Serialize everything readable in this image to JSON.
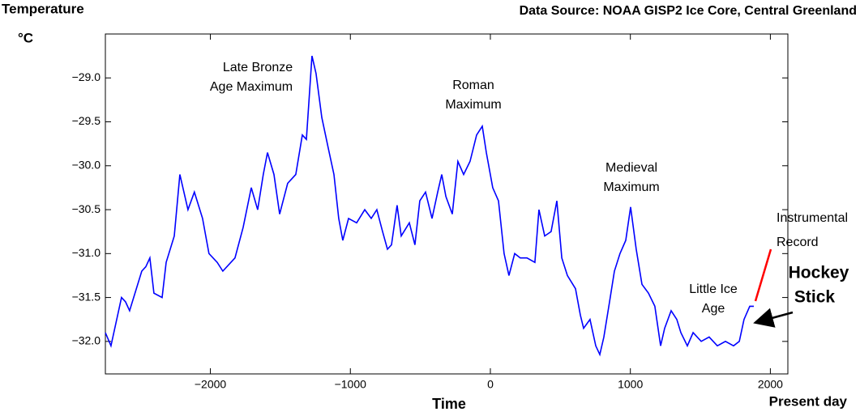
{
  "chart_data": {
    "type": "line",
    "title": "Data Source: NOAA GISP2 Ice Core, Central Greenland",
    "y_label": [
      "Temperature",
      "°C"
    ],
    "x_label": "Time",
    "x_end_label": "Present day",
    "annotations": [
      {
        "lines": [
          "Late Bronze",
          "Age Maximum"
        ]
      },
      {
        "lines": [
          "Roman",
          "Maximum"
        ]
      },
      {
        "lines": [
          "Medieval",
          "Maximum"
        ]
      },
      {
        "lines": [
          "Little Ice",
          "Age"
        ]
      },
      {
        "lines": [
          "Instrumental",
          "Record"
        ],
        "color": "#ff0000"
      },
      {
        "lines": [
          "Hockey",
          "Stick"
        ]
      }
    ],
    "xlim": [
      -2750,
      2125
    ],
    "ylim": [
      -32.37,
      -28.5
    ],
    "xticks": [
      {
        "value": -2000,
        "label": "−2000"
      },
      {
        "value": -1000,
        "label": "−1000"
      },
      0,
      1000,
      2000
    ],
    "yticks": [
      {
        "value": -29.0,
        "label": "−29.0"
      },
      {
        "value": -29.5,
        "label": "−29.5"
      },
      {
        "value": -30.0,
        "label": "−30.0"
      },
      {
        "value": -30.5,
        "label": "−30.5"
      },
      {
        "value": -31.0,
        "label": "−31.0"
      },
      {
        "value": -31.5,
        "label": "−31.5"
      },
      {
        "value": -32.0,
        "label": "−32.0"
      }
    ],
    "series": [
      {
        "color": "#0000ff",
        "x": [
          -2750,
          -2710,
          -2635,
          -2606,
          -2577,
          -2490,
          -2461,
          -2432,
          -2403,
          -2345,
          -2316,
          -2258,
          -2218,
          -2160,
          -2114,
          -2056,
          -2010,
          -1951,
          -1911,
          -1824,
          -1766,
          -1708,
          -1662,
          -1622,
          -1592,
          -1546,
          -1505,
          -1448,
          -1390,
          -1343,
          -1314,
          -1274,
          -1245,
          -1204,
          -1158,
          -1117,
          -1083,
          -1054,
          -1013,
          -955,
          -897,
          -851,
          -811,
          -770,
          -735,
          -706,
          -666,
          -637,
          -579,
          -539,
          -504,
          -463,
          -417,
          -376,
          -347,
          -318,
          -272,
          -232,
          -191,
          -145,
          -98,
          -58,
          -29,
          17,
          58,
          98,
          133,
          174,
          214,
          261,
          318,
          347,
          388,
          434,
          475,
          510,
          550,
          608,
          643,
          666,
          712,
          753,
          782,
          811,
          851,
          886,
          926,
          967,
          1002,
          1042,
          1083,
          1129,
          1175,
          1216,
          1245,
          1291,
          1332,
          1361,
          1407,
          1448,
          1506,
          1563,
          1621,
          1679,
          1737,
          1778,
          1812,
          1853,
          1882
        ],
        "values": [
          -31.9,
          -32.05,
          -31.5,
          -31.55,
          -31.65,
          -31.2,
          -31.15,
          -31.05,
          -31.45,
          -31.5,
          -31.1,
          -30.8,
          -30.1,
          -30.5,
          -30.3,
          -30.6,
          -31.0,
          -31.1,
          -31.2,
          -31.05,
          -30.7,
          -30.25,
          -30.5,
          -30.1,
          -29.85,
          -30.1,
          -30.55,
          -30.2,
          -30.1,
          -29.65,
          -29.7,
          -28.75,
          -28.95,
          -29.45,
          -29.8,
          -30.1,
          -30.6,
          -30.85,
          -30.6,
          -30.65,
          -30.5,
          -30.6,
          -30.5,
          -30.75,
          -30.95,
          -30.9,
          -30.45,
          -30.8,
          -30.65,
          -30.9,
          -30.4,
          -30.3,
          -30.6,
          -30.3,
          -30.1,
          -30.35,
          -30.55,
          -29.95,
          -30.1,
          -29.95,
          -29.65,
          -29.55,
          -29.85,
          -30.25,
          -30.4,
          -31.0,
          -31.25,
          -31.0,
          -31.05,
          -31.05,
          -31.1,
          -30.5,
          -30.8,
          -30.75,
          -30.4,
          -31.05,
          -31.25,
          -31.4,
          -31.7,
          -31.85,
          -31.75,
          -32.05,
          -32.15,
          -31.95,
          -31.55,
          -31.2,
          -31.0,
          -30.85,
          -30.47,
          -30.95,
          -31.35,
          -31.45,
          -31.6,
          -32.05,
          -31.85,
          -31.65,
          -31.75,
          -31.9,
          -32.05,
          -31.9,
          -32.0,
          -31.95,
          -32.05,
          -32.0,
          -32.05,
          -32.0,
          -31.75,
          -31.6,
          -31.6
        ]
      }
    ]
  }
}
